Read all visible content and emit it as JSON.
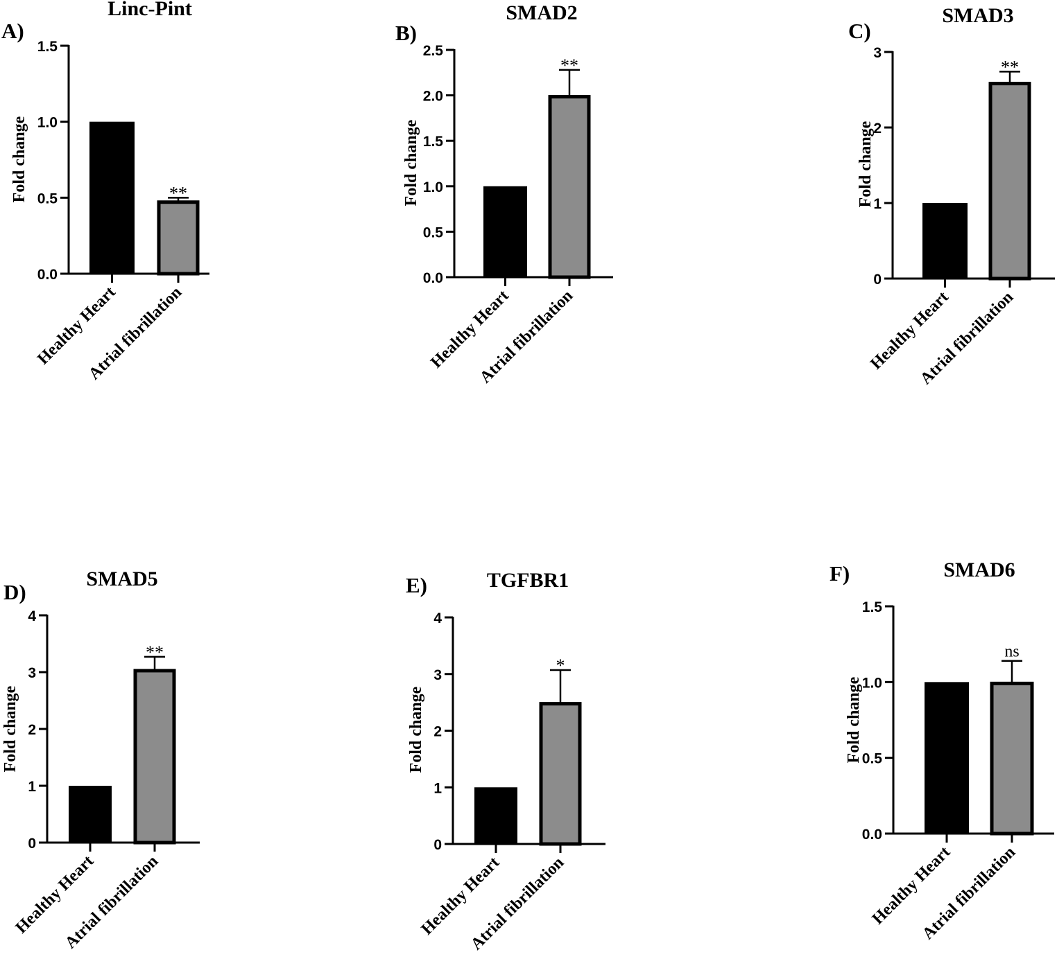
{
  "chart_data": [
    {
      "type": "bar",
      "panel_label": "A)",
      "title": "Linc-Pint",
      "ylabel": "Fold change",
      "categories": [
        "Healthy Heart",
        "Atrial fibrillation"
      ],
      "values": [
        1.0,
        0.48
      ],
      "error": [
        0,
        0.02
      ],
      "significance": [
        "",
        "**"
      ],
      "ylim": [
        0,
        1.5
      ],
      "yticks": [
        "0.0",
        "0.5",
        "1.0",
        "1.5"
      ],
      "bar_colors": [
        "#000000",
        "#8c8c8c"
      ]
    },
    {
      "type": "bar",
      "panel_label": "B)",
      "title": "SMAD2",
      "ylabel": "Fold change",
      "categories": [
        "Healthy Heart",
        "Atrial fibrillation"
      ],
      "values": [
        1.0,
        2.0
      ],
      "error": [
        0,
        0.28
      ],
      "significance": [
        "",
        "**"
      ],
      "ylim": [
        0,
        2.5
      ],
      "yticks": [
        "0.0",
        "0.5",
        "1.0",
        "1.5",
        "2.0",
        "2.5"
      ],
      "bar_colors": [
        "#000000",
        "#8c8c8c"
      ]
    },
    {
      "type": "bar",
      "panel_label": "C)",
      "title": "SMAD3",
      "ylabel": "Fold change",
      "categories": [
        "Healthy Heart",
        "Atrial fibrillation"
      ],
      "values": [
        1.0,
        2.6
      ],
      "error": [
        0,
        0.14
      ],
      "significance": [
        "",
        "**"
      ],
      "ylim": [
        0,
        3
      ],
      "yticks": [
        "0",
        "1",
        "2",
        "3"
      ],
      "bar_colors": [
        "#000000",
        "#8c8c8c"
      ]
    },
    {
      "type": "bar",
      "panel_label": "D)",
      "title": "SMAD5",
      "ylabel": "Fold change",
      "categories": [
        "Healthy Heart",
        "Atrial fibrillation"
      ],
      "values": [
        1.0,
        3.05
      ],
      "error": [
        0,
        0.22
      ],
      "significance": [
        "",
        "**"
      ],
      "ylim": [
        0,
        4
      ],
      "yticks": [
        "0",
        "1",
        "2",
        "3",
        "4"
      ],
      "bar_colors": [
        "#000000",
        "#8c8c8c"
      ]
    },
    {
      "type": "bar",
      "panel_label": "E)",
      "title": "TGFBR1",
      "ylabel": "Fold change",
      "categories": [
        "Healthy Heart",
        "Atrial fibrillation"
      ],
      "values": [
        1.0,
        2.5
      ],
      "error": [
        0,
        0.57
      ],
      "significance": [
        "",
        "*"
      ],
      "ylim": [
        0,
        4
      ],
      "yticks": [
        "0",
        "1",
        "2",
        "3",
        "4"
      ],
      "bar_colors": [
        "#000000",
        "#8c8c8c"
      ]
    },
    {
      "type": "bar",
      "panel_label": "F)",
      "title": "SMAD6",
      "ylabel": "Fold change",
      "categories": [
        "Healthy Heart",
        "Atrial fibrillation"
      ],
      "values": [
        1.0,
        1.0
      ],
      "error": [
        0,
        0.14
      ],
      "significance": [
        "",
        "ns"
      ],
      "ylim": [
        0,
        1.5
      ],
      "yticks": [
        "0.0",
        "0.5",
        "1.0",
        "1.5"
      ],
      "bar_colors": [
        "#000000",
        "#8c8c8c"
      ]
    }
  ]
}
